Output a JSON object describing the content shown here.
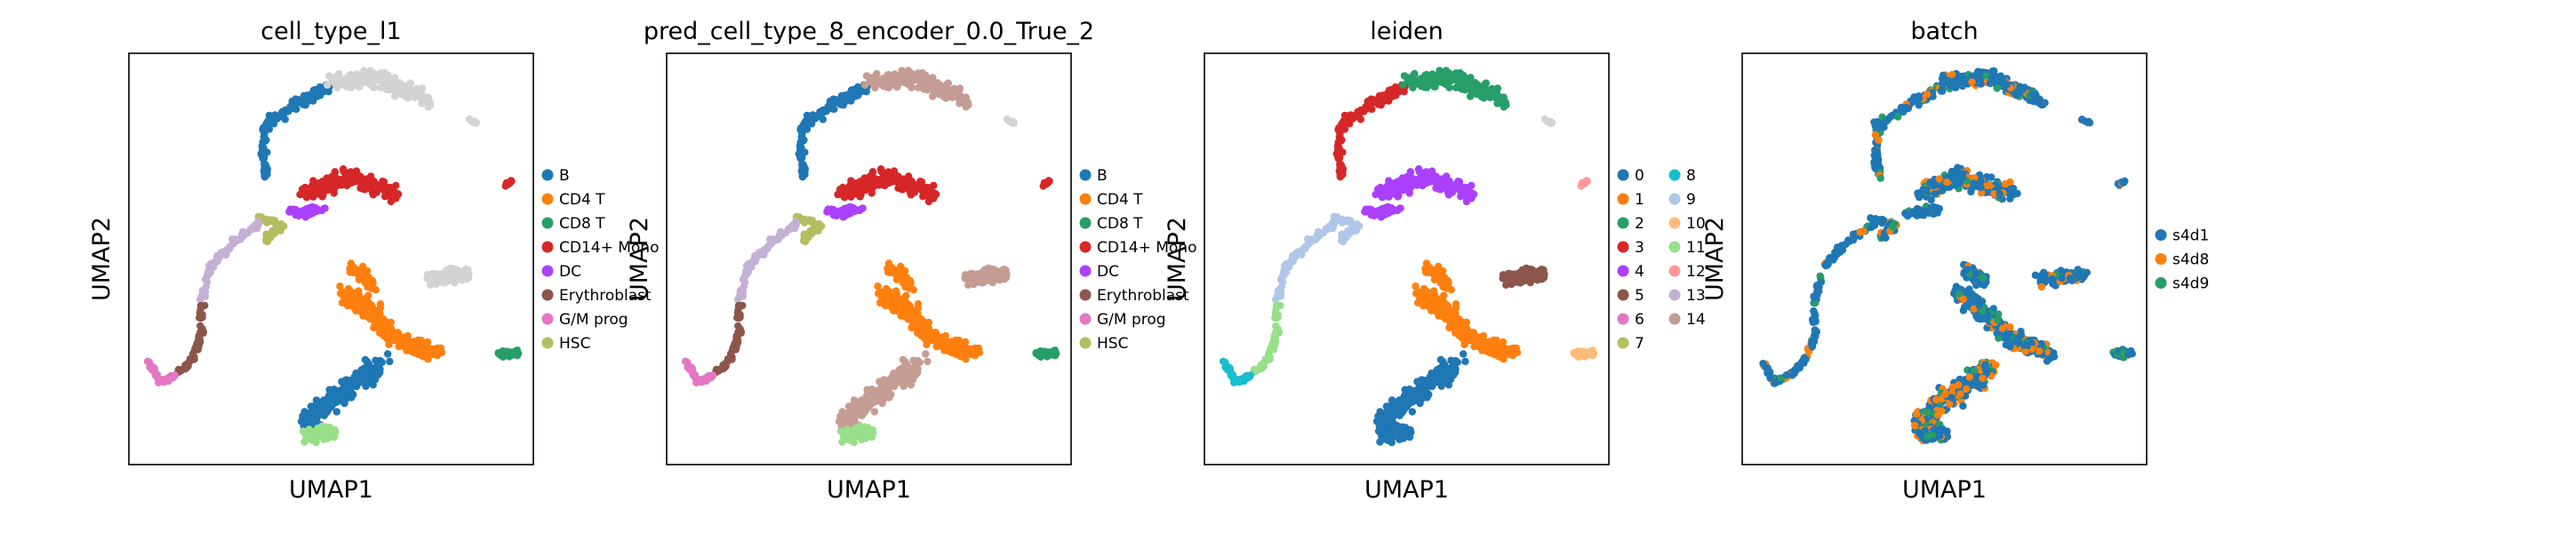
{
  "chart_data": [
    {
      "type": "scatter",
      "title": "cell_type_l1",
      "xlabel": "UMAP1",
      "ylabel": "UMAP2",
      "grid": false,
      "legend_placement": "right",
      "legend": [
        {
          "name": "B",
          "color": "#1f77b4"
        },
        {
          "name": "CD4 T",
          "color": "#ff7f0e"
        },
        {
          "name": "CD8 T",
          "color": "#279e68"
        },
        {
          "name": "CD14+ Mono",
          "color": "#d62728"
        },
        {
          "name": "DC",
          "color": "#aa40fc"
        },
        {
          "name": "Erythroblast",
          "color": "#8c564b"
        },
        {
          "name": "G/M prog",
          "color": "#e377c2"
        },
        {
          "name": "HSC",
          "color": "#b5bd61"
        }
      ]
    },
    {
      "type": "scatter",
      "title": "pred_cell_type_8_encoder_0.0_True_2",
      "xlabel": "UMAP1",
      "ylabel": "UMAP2",
      "grid": false,
      "legend_placement": "right",
      "legend": [
        {
          "name": "B",
          "color": "#1f77b4"
        },
        {
          "name": "CD4 T",
          "color": "#ff7f0e"
        },
        {
          "name": "CD8 T",
          "color": "#279e68"
        },
        {
          "name": "CD14+ Mono",
          "color": "#d62728"
        },
        {
          "name": "DC",
          "color": "#aa40fc"
        },
        {
          "name": "Erythroblast",
          "color": "#8c564b"
        },
        {
          "name": "G/M prog",
          "color": "#e377c2"
        },
        {
          "name": "HSC",
          "color": "#b5bd61"
        }
      ]
    },
    {
      "type": "scatter",
      "title": "leiden",
      "xlabel": "UMAP1",
      "ylabel": "UMAP2",
      "grid": false,
      "legend_placement": "right",
      "legend": [
        {
          "name": "0",
          "color": "#1f77b4"
        },
        {
          "name": "1",
          "color": "#ff7f0e"
        },
        {
          "name": "2",
          "color": "#279e68"
        },
        {
          "name": "3",
          "color": "#d62728"
        },
        {
          "name": "4",
          "color": "#aa40fc"
        },
        {
          "name": "5",
          "color": "#8c564b"
        },
        {
          "name": "6",
          "color": "#e377c2"
        },
        {
          "name": "7",
          "color": "#b5bd61"
        },
        {
          "name": "8",
          "color": "#17becf"
        },
        {
          "name": "9",
          "color": "#aec7e8"
        },
        {
          "name": "10",
          "color": "#ffbb78"
        },
        {
          "name": "11",
          "color": "#98df8a"
        },
        {
          "name": "12",
          "color": "#ff9896"
        },
        {
          "name": "13",
          "color": "#c5b0d5"
        },
        {
          "name": "14",
          "color": "#c49c94"
        }
      ]
    },
    {
      "type": "scatter",
      "title": "batch",
      "xlabel": "UMAP1",
      "ylabel": "UMAP2",
      "grid": false,
      "legend_placement": "right",
      "legend": [
        {
          "name": "s4d1",
          "color": "#1f77b4"
        },
        {
          "name": "s4d8",
          "color": "#ff7f0e"
        },
        {
          "name": "s4d9",
          "color": "#279e68"
        }
      ]
    }
  ]
}
